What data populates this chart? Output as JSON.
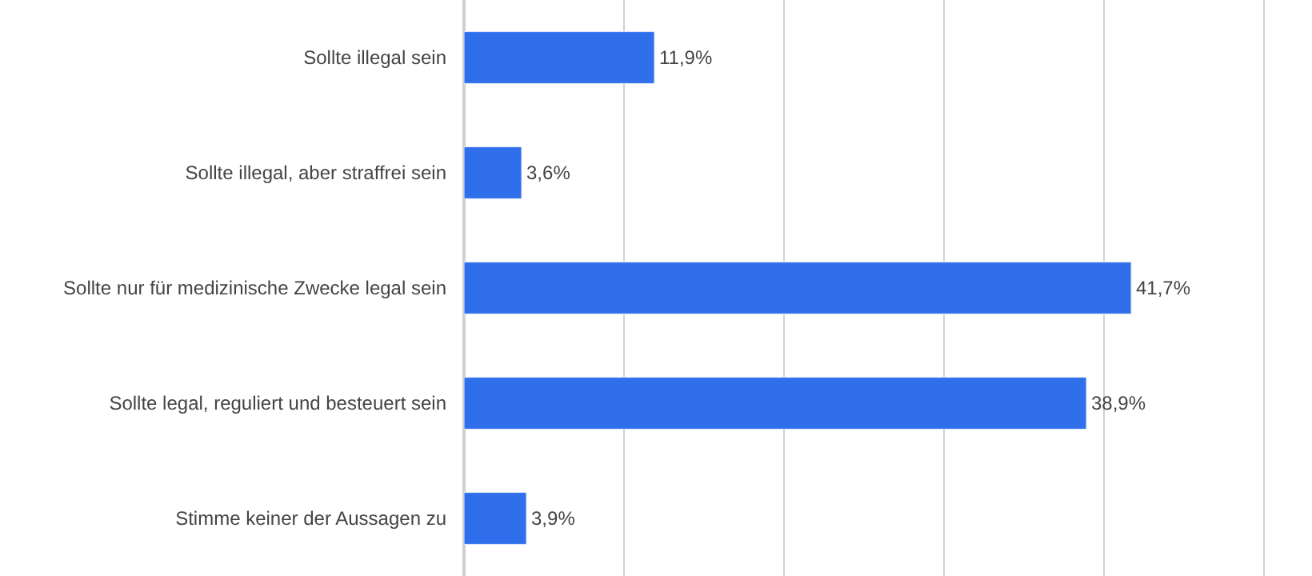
{
  "chart_data": {
    "type": "bar",
    "orientation": "horizontal",
    "categories": [
      "Sollte illegal sein",
      "Sollte illegal, aber straffrei sein",
      "Sollte nur für medizinische Zwecke legal sein",
      "Sollte legal, reguliert und besteuert sein",
      "Stimme keiner der Aussagen zu"
    ],
    "values": [
      11.9,
      3.6,
      41.7,
      38.9,
      3.9
    ],
    "value_labels": [
      "11,9%",
      "3,6%",
      "41,7%",
      "38,9%",
      "3,9%"
    ],
    "color": "#2f6fec",
    "xlim": [
      0,
      53
    ],
    "xticks": [
      {
        "value": 0,
        "label": null
      },
      {
        "value": 10,
        "label": null
      },
      {
        "value": 20,
        "label": null
      },
      {
        "value": 30,
        "label": null
      },
      {
        "value": 40,
        "label": null
      },
      {
        "value": 50,
        "label": null
      }
    ],
    "grid": "x",
    "legend": false,
    "tick_labels": "y"
  }
}
